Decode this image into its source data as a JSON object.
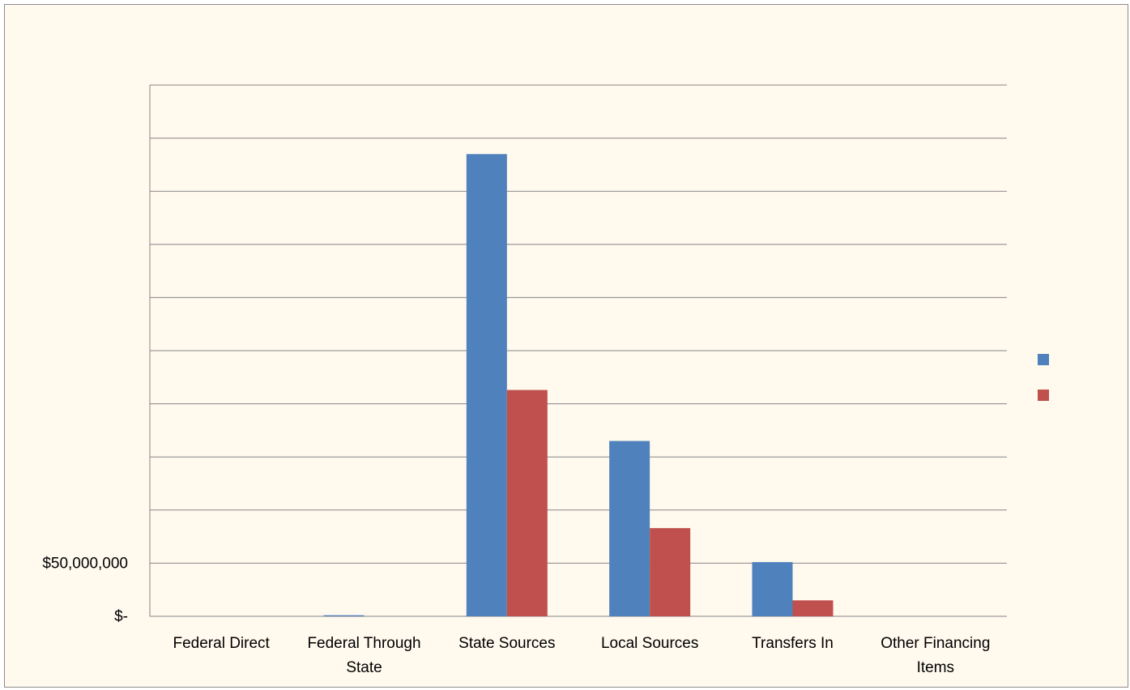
{
  "chart_data": {
    "type": "bar",
    "title": "",
    "xlabel": "",
    "ylabel": "",
    "ylim": [
      0,
      500000000
    ],
    "y_step": 50000000,
    "y_tick_labels": [
      {
        "value": 0,
        "label": "$-"
      },
      {
        "value": 50000000,
        "label": "$50,000,000"
      }
    ],
    "grid": true,
    "legend_position": "right",
    "categories": [
      [
        "Federal Direct"
      ],
      [
        "Federal Through",
        "State"
      ],
      [
        "State Sources"
      ],
      [
        "Local Sources"
      ],
      [
        "Transfers In"
      ],
      [
        "Other Financing",
        "Items"
      ]
    ],
    "series": [
      {
        "color": "#4f81bd",
        "values": [
          0,
          1000000,
          435000000,
          165000000,
          51000000,
          0
        ]
      },
      {
        "color": "#c0504d",
        "values": [
          0,
          0,
          213000000,
          83000000,
          15000000,
          0
        ]
      }
    ]
  }
}
